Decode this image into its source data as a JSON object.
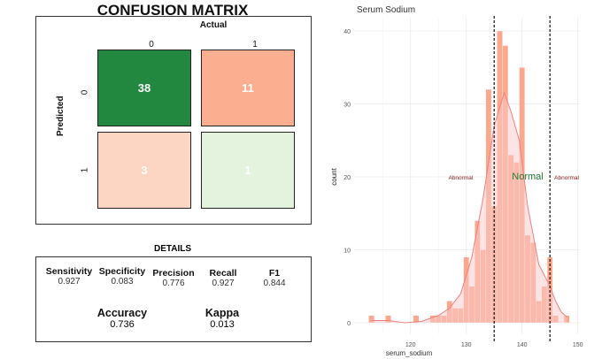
{
  "chart_data": [
    {
      "type": "heatmap",
      "title": "CONFUSION MATRIX",
      "xlabel": "Actual",
      "ylabel": "Predicted",
      "x_categories": [
        "0",
        "1"
      ],
      "y_categories": [
        "0",
        "1"
      ],
      "cells": [
        [
          38,
          11
        ],
        [
          3,
          1
        ]
      ],
      "colors": [
        [
          "#23883f",
          "#fcae91"
        ],
        [
          "#fdd5c3",
          "#e3f3de"
        ]
      ]
    },
    {
      "type": "table",
      "title": "DETAILS",
      "metrics": [
        {
          "name": "Sensitivity",
          "value": "0.927"
        },
        {
          "name": "Specificity",
          "value": "0.083"
        },
        {
          "name": "Precision",
          "value": "0.776"
        },
        {
          "name": "Recall",
          "value": "0.927"
        },
        {
          "name": "F1",
          "value": "0.844"
        }
      ],
      "summary": [
        {
          "name": "Accuracy",
          "value": "0.736"
        },
        {
          "name": "Kappa",
          "value": "0.013"
        }
      ]
    },
    {
      "type": "bar",
      "title": "Serum Sodium",
      "xlabel": "serum_sodium",
      "ylabel": "count",
      "xlim": [
        112,
        150
      ],
      "ylim": [
        0,
        42
      ],
      "xticks": [
        120,
        130,
        140,
        150
      ],
      "yticks": [
        0,
        10,
        20,
        30,
        40
      ],
      "grid": true,
      "bar_color": "#fc9f80",
      "curve_color": "#f08080",
      "bins": [
        [
          113,
          1
        ],
        [
          116,
          1
        ],
        [
          121,
          1
        ],
        [
          124,
          1
        ],
        [
          125,
          1
        ],
        [
          126,
          1
        ],
        [
          127,
          3
        ],
        [
          128,
          2
        ],
        [
          129,
          2
        ],
        [
          130,
          9
        ],
        [
          131,
          5
        ],
        [
          132,
          14
        ],
        [
          133,
          10
        ],
        [
          134,
          32
        ],
        [
          135,
          16
        ],
        [
          136,
          40
        ],
        [
          137,
          38
        ],
        [
          138,
          23
        ],
        [
          139,
          22
        ],
        [
          140,
          35
        ],
        [
          141,
          12
        ],
        [
          142,
          11
        ],
        [
          143,
          3
        ],
        [
          144,
          5
        ],
        [
          145,
          9
        ],
        [
          146,
          1
        ],
        [
          148,
          1
        ]
      ],
      "density_curve": [
        [
          113,
          0.3
        ],
        [
          116,
          0.3
        ],
        [
          119,
          0
        ],
        [
          122,
          0.2
        ],
        [
          125,
          1
        ],
        [
          127,
          2
        ],
        [
          129,
          4
        ],
        [
          131,
          9
        ],
        [
          133,
          17
        ],
        [
          135,
          27
        ],
        [
          136.8,
          31.5
        ],
        [
          138,
          29
        ],
        [
          139.5,
          25
        ],
        [
          141,
          16
        ],
        [
          143,
          8
        ],
        [
          145,
          5
        ],
        [
          146,
          3
        ],
        [
          147,
          1.5
        ],
        [
          148,
          0.8
        ]
      ],
      "reference_lines": [
        135,
        145
      ],
      "annotations": [
        {
          "text": "Abnormal",
          "x": 129,
          "y": 20,
          "color": "#8b1a1a"
        },
        {
          "text": "Normal",
          "x": 141,
          "y": 20,
          "color": "#1f7a2e"
        },
        {
          "text": "Abnormal",
          "x": 148,
          "y": 20,
          "color": "#8b1a1a"
        }
      ]
    }
  ]
}
